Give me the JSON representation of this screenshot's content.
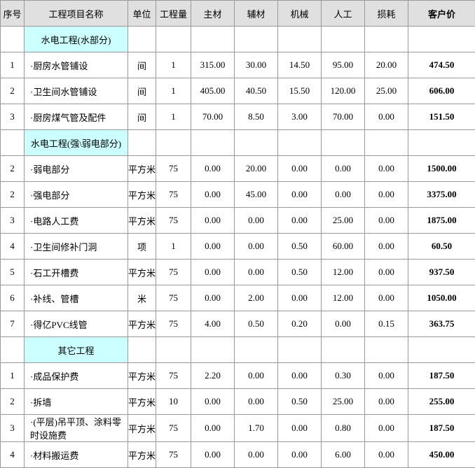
{
  "headers": {
    "seq": "序号",
    "name": "工程项目名称",
    "unit": "单位",
    "qty": "工程量",
    "main": "主材",
    "aux": "辅材",
    "mach": "机械",
    "labor": "人工",
    "loss": "损耗",
    "cust": "客户价"
  },
  "rows": [
    {
      "type": "section",
      "label": "水电工程(水部分)"
    },
    {
      "type": "item",
      "seq": "1",
      "name": "·厨房水管铺设",
      "unit": "间",
      "qty": "1",
      "main": "315.00",
      "aux": "30.00",
      "mach": "14.50",
      "labor": "95.00",
      "loss": "20.00",
      "cust": "474.50"
    },
    {
      "type": "item",
      "seq": "2",
      "name": "·卫生间水管铺设",
      "unit": "间",
      "qty": "1",
      "main": "405.00",
      "aux": "40.50",
      "mach": "15.50",
      "labor": "120.00",
      "loss": "25.00",
      "cust": "606.00"
    },
    {
      "type": "item",
      "seq": "3",
      "name": "·厨房煤气管及配件",
      "unit": "间",
      "qty": "1",
      "main": "70.00",
      "aux": "8.50",
      "mach": "3.00",
      "labor": "70.00",
      "loss": "0.00",
      "cust": "151.50"
    },
    {
      "type": "section",
      "label": "水电工程(强\\弱电部分)"
    },
    {
      "type": "item",
      "seq": "2",
      "name": "·弱电部分",
      "unit": "平方米",
      "qty": "75",
      "main": "0.00",
      "aux": "20.00",
      "mach": "0.00",
      "labor": "0.00",
      "loss": "0.00",
      "cust": "1500.00"
    },
    {
      "type": "item",
      "seq": "2",
      "name": "·强电部分",
      "unit": "平方米",
      "qty": "75",
      "main": "0.00",
      "aux": "45.00",
      "mach": "0.00",
      "labor": "0.00",
      "loss": "0.00",
      "cust": "3375.00"
    },
    {
      "type": "item",
      "seq": "3",
      "name": "·电路人工费",
      "unit": "平方米",
      "qty": "75",
      "main": "0.00",
      "aux": "0.00",
      "mach": "0.00",
      "labor": "25.00",
      "loss": "0.00",
      "cust": "1875.00"
    },
    {
      "type": "item",
      "seq": "4",
      "name": "·卫生间修补门洞",
      "unit": "项",
      "qty": "1",
      "main": "0.00",
      "aux": "0.00",
      "mach": "0.50",
      "labor": "60.00",
      "loss": "0.00",
      "cust": "60.50"
    },
    {
      "type": "item",
      "seq": "5",
      "name": "·石工开槽费",
      "unit": "平方米",
      "qty": "75",
      "main": "0.00",
      "aux": "0.00",
      "mach": "0.50",
      "labor": "12.00",
      "loss": "0.00",
      "cust": "937.50"
    },
    {
      "type": "item",
      "seq": "6",
      "name": "·补线、管槽",
      "unit": "米",
      "qty": "75",
      "main": "0.00",
      "aux": "2.00",
      "mach": "0.00",
      "labor": "12.00",
      "loss": "0.00",
      "cust": "1050.00"
    },
    {
      "type": "item",
      "seq": "7",
      "name": "·得亿PVC线管",
      "unit": "平方米",
      "qty": "75",
      "main": "4.00",
      "aux": "0.50",
      "mach": "0.20",
      "labor": "0.00",
      "loss": "0.15",
      "cust": "363.75"
    },
    {
      "type": "section",
      "label": "其它工程"
    },
    {
      "type": "item",
      "seq": "1",
      "name": "·成品保护费",
      "unit": "平方米",
      "qty": "75",
      "main": "2.20",
      "aux": "0.00",
      "mach": "0.00",
      "labor": "0.30",
      "loss": "0.00",
      "cust": "187.50"
    },
    {
      "type": "item",
      "seq": "2",
      "name": "·拆墙",
      "unit": "平方米",
      "qty": "10",
      "main": "0.00",
      "aux": "0.00",
      "mach": "0.50",
      "labor": "25.00",
      "loss": "0.00",
      "cust": "255.00"
    },
    {
      "type": "item",
      "seq": "3",
      "name": "·(平层)吊平顶、涂料零时设施费",
      "unit": "平方米",
      "qty": "75",
      "main": "0.00",
      "aux": "1.70",
      "mach": "0.00",
      "labor": "0.80",
      "loss": "0.00",
      "cust": "187.50"
    },
    {
      "type": "item",
      "seq": "4",
      "name": "·材料搬运费",
      "unit": "平方米",
      "qty": "75",
      "main": "0.00",
      "aux": "0.00",
      "mach": "0.00",
      "labor": "6.00",
      "loss": "0.00",
      "cust": "450.00"
    }
  ]
}
